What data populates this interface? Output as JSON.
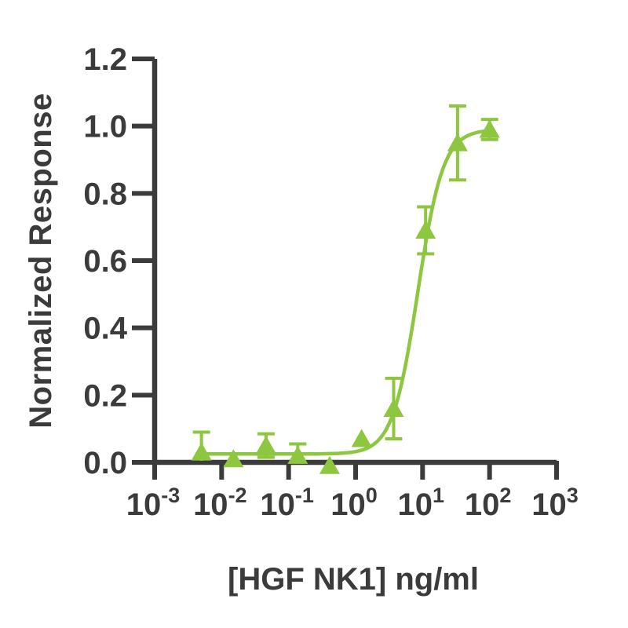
{
  "page": {
    "background": "#ffffff"
  },
  "chart_data": {
    "type": "scatter",
    "title": "",
    "xlabel": "[HGF NK1] ng/ml",
    "ylabel": "Normalized Response",
    "x_scale": "log10",
    "x_tick_exponents": [
      -3,
      -2,
      -1,
      0,
      1,
      2,
      3
    ],
    "y_ticks": [
      "0.0",
      "0.2",
      "0.4",
      "0.6",
      "0.8",
      "1.0",
      "1.2"
    ],
    "ylim": [
      0,
      1.2
    ],
    "grid": "off",
    "legend": "none",
    "colors": {
      "axis": "#3b3b3b",
      "series": "#8dc63f",
      "background": "#ffffff"
    },
    "series": [
      {
        "name": "HGF NK1",
        "marker": "triangle-up",
        "color": "#8dc63f",
        "points": [
          {
            "x": 0.005,
            "y": 0.03,
            "err": 0.06
          },
          {
            "x": 0.015,
            "y": 0.01,
            "err": 0
          },
          {
            "x": 0.046,
            "y": 0.05,
            "err": 0.035
          },
          {
            "x": 0.137,
            "y": 0.02,
            "err": 0.035
          },
          {
            "x": 0.41,
            "y": -0.01,
            "err": 0
          },
          {
            "x": 1.23,
            "y": 0.07,
            "err": 0
          },
          {
            "x": 3.7,
            "y": 0.16,
            "err": 0.09
          },
          {
            "x": 11.1,
            "y": 0.69,
            "err": 0.07
          },
          {
            "x": 33.3,
            "y": 0.95,
            "err": 0.11
          },
          {
            "x": 100,
            "y": 0.99,
            "err": 0.03
          }
        ],
        "fit_curve": {
          "model": "four_parameter_logistic",
          "bottom": 0.025,
          "top": 0.99,
          "ec50_ng_ml": 8.5,
          "hill_slope": 2.3,
          "x_range": [
            0.005,
            100
          ]
        }
      }
    ]
  }
}
